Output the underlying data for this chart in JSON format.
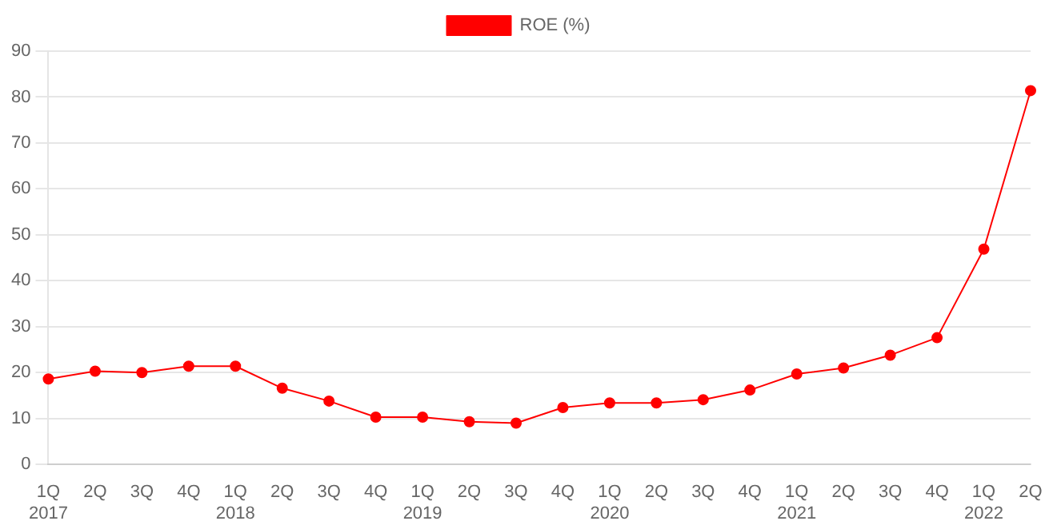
{
  "chart_data": {
    "type": "line",
    "categories": [
      "1Q\n2017",
      "2Q",
      "3Q",
      "4Q",
      "1Q\n2018",
      "2Q",
      "3Q",
      "4Q",
      "1Q\n2019",
      "2Q",
      "3Q",
      "4Q",
      "1Q\n2020",
      "2Q",
      "3Q",
      "4Q",
      "1Q\n2021",
      "2Q",
      "3Q",
      "4Q",
      "1Q\n2022",
      "2Q"
    ],
    "series": [
      {
        "name": "ROE (%)",
        "color": "#ff0000",
        "values": [
          18.6,
          20.3,
          20.0,
          21.4,
          21.4,
          16.6,
          13.8,
          10.3,
          10.3,
          9.3,
          9.0,
          12.4,
          13.4,
          13.4,
          14.1,
          16.2,
          19.7,
          21.0,
          23.8,
          27.6,
          46.9,
          81.4
        ]
      }
    ],
    "ylim": [
      0,
      90
    ],
    "yticks": [
      0,
      10,
      20,
      30,
      40,
      50,
      60,
      70,
      80,
      90
    ],
    "grid": "y",
    "legend": "top",
    "marker": "circle",
    "line_style": "solid"
  }
}
